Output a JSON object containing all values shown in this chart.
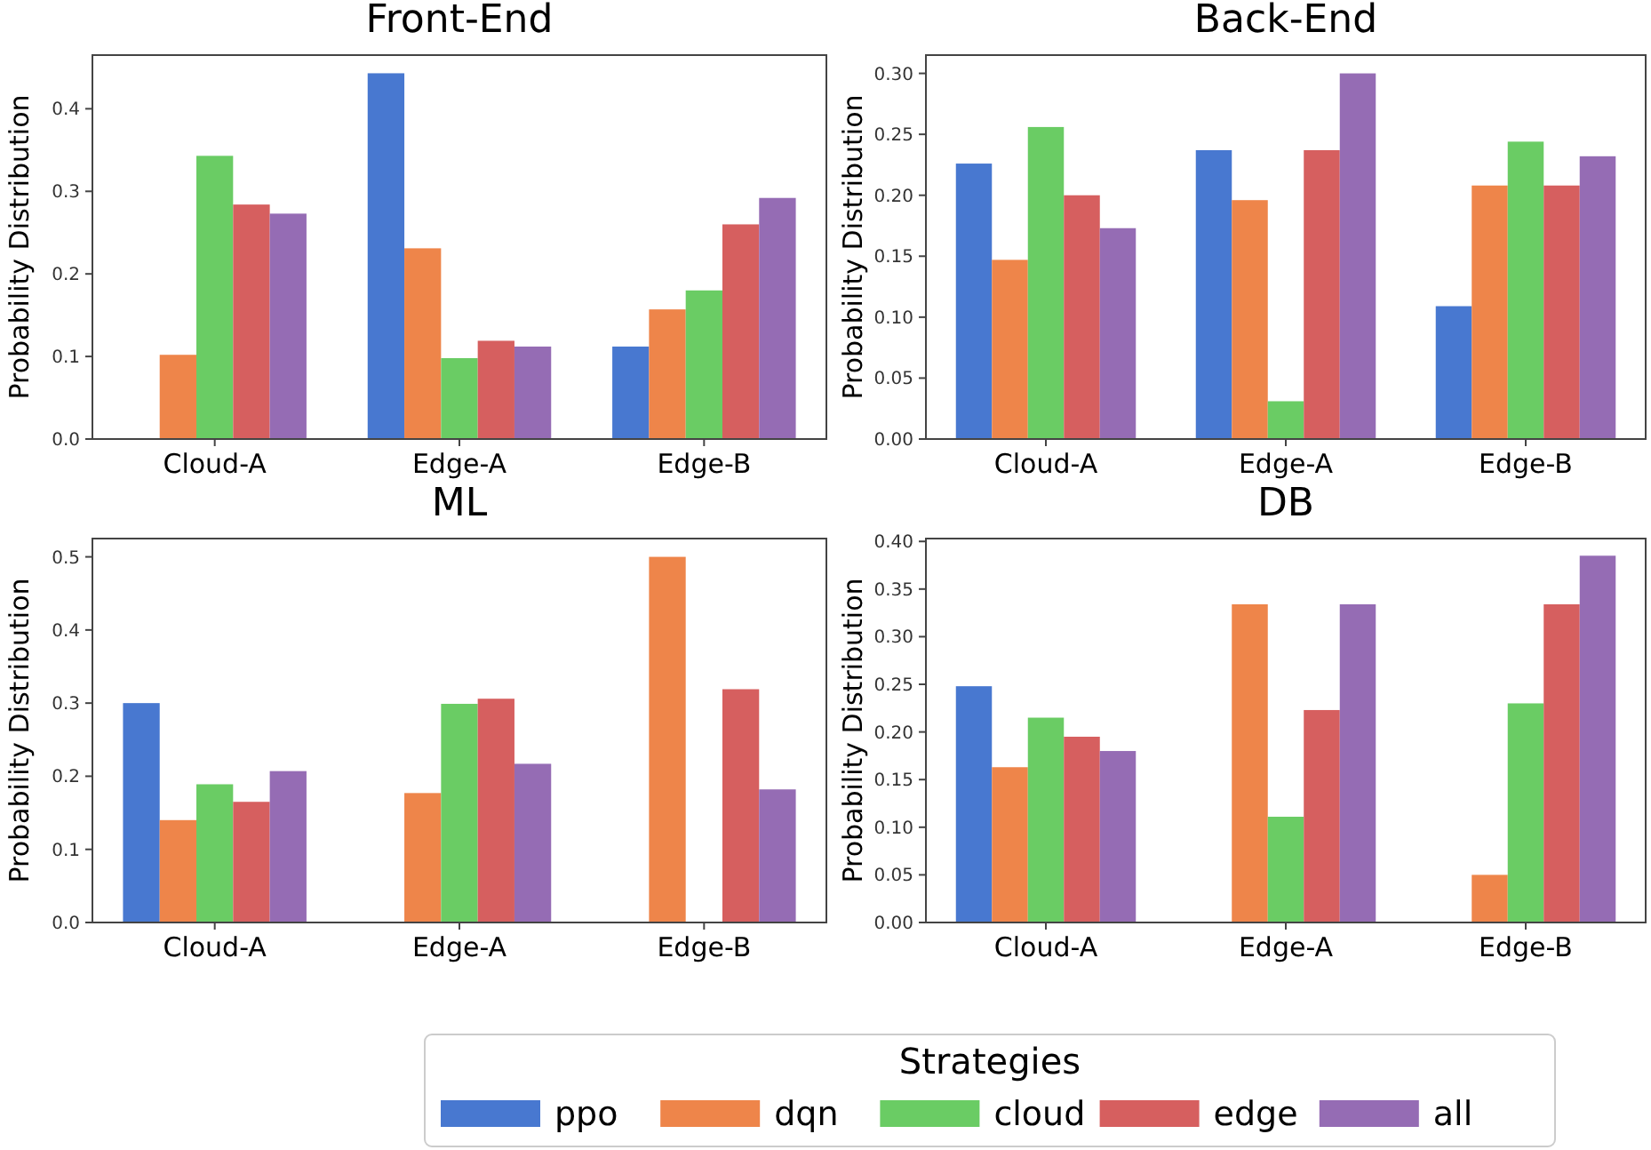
{
  "chart_data": [
    {
      "type": "bar",
      "title": "Front-End",
      "ylabel": "Probability Distribution",
      "categories": [
        "Cloud-A",
        "Edge-A",
        "Edge-B"
      ],
      "legend": "bottom",
      "legend_title": "Strategies",
      "ylim": [
        0,
        0.465
      ],
      "yticks": [
        {
          "value": 0,
          "label": "0.0"
        },
        {
          "value": 0.1,
          "label": "0.1"
        },
        {
          "value": 0.2,
          "label": "0.2"
        },
        {
          "value": 0.3,
          "label": "0.3"
        },
        {
          "value": 0.4,
          "label": "0.4"
        }
      ],
      "series": [
        {
          "name": "ppo",
          "color": "#4878d0",
          "values": [
            0,
            0.443,
            0.112
          ]
        },
        {
          "name": "dqn",
          "color": "#ee854a",
          "values": [
            0.102,
            0.231,
            0.157
          ]
        },
        {
          "name": "cloud",
          "color": "#6acc64",
          "values": [
            0.343,
            0.098,
            0.18
          ]
        },
        {
          "name": "edge",
          "color": "#d65f5f",
          "values": [
            0.284,
            0.119,
            0.26
          ]
        },
        {
          "name": "all",
          "color": "#956cb4",
          "values": [
            0.273,
            0.112,
            0.292
          ]
        }
      ]
    },
    {
      "type": "bar",
      "title": "Back-End",
      "ylabel": "Probability Distribution",
      "categories": [
        "Cloud-A",
        "Edge-A",
        "Edge-B"
      ],
      "ylim": [
        0,
        0.315
      ],
      "yticks": [
        {
          "value": 0,
          "label": "0.00"
        },
        {
          "value": 0.05,
          "label": "0.05"
        },
        {
          "value": 0.1,
          "label": "0.10"
        },
        {
          "value": 0.15,
          "label": "0.15"
        },
        {
          "value": 0.2,
          "label": "0.20"
        },
        {
          "value": 0.25,
          "label": "0.25"
        },
        {
          "value": 0.3,
          "label": "0.30"
        }
      ],
      "series": [
        {
          "color": "#4878d0",
          "values": [
            0.226,
            0.237,
            0.109
          ]
        },
        {
          "color": "#ee854a",
          "values": [
            0.147,
            0.196,
            0.208
          ]
        },
        {
          "color": "#6acc64",
          "values": [
            0.256,
            0.031,
            0.244
          ]
        },
        {
          "color": "#d65f5f",
          "values": [
            0.2,
            0.237,
            0.208
          ]
        },
        {
          "color": "#956cb4",
          "values": [
            0.173,
            0.3,
            0.232
          ]
        }
      ]
    },
    {
      "type": "bar",
      "title": "ML",
      "ylabel": "Probability Distribution",
      "categories": [
        "Cloud-A",
        "Edge-A",
        "Edge-B"
      ],
      "ylim": [
        0,
        0.525
      ],
      "yticks": [
        {
          "value": 0,
          "label": "0.0"
        },
        {
          "value": 0.1,
          "label": "0.1"
        },
        {
          "value": 0.2,
          "label": "0.2"
        },
        {
          "value": 0.3,
          "label": "0.3"
        },
        {
          "value": 0.4,
          "label": "0.4"
        },
        {
          "value": 0.5,
          "label": "0.5"
        }
      ],
      "series": [
        {
          "color": "#4878d0",
          "values": [
            0.3,
            0,
            0
          ]
        },
        {
          "color": "#ee854a",
          "values": [
            0.14,
            0.177,
            0.5
          ]
        },
        {
          "color": "#6acc64",
          "values": [
            0.189,
            0.299,
            0
          ]
        },
        {
          "color": "#d65f5f",
          "values": [
            0.165,
            0.306,
            0.319
          ]
        },
        {
          "color": "#956cb4",
          "values": [
            0.207,
            0.217,
            0.182
          ]
        }
      ]
    },
    {
      "type": "bar",
      "title": "DB",
      "ylabel": "Probability Distribution",
      "categories": [
        "Cloud-A",
        "Edge-A",
        "Edge-B"
      ],
      "ylim": [
        0,
        0.403
      ],
      "yticks": [
        {
          "value": 0,
          "label": "0.00"
        },
        {
          "value": 0.05,
          "label": "0.05"
        },
        {
          "value": 0.1,
          "label": "0.10"
        },
        {
          "value": 0.15,
          "label": "0.15"
        },
        {
          "value": 0.2,
          "label": "0.20"
        },
        {
          "value": 0.25,
          "label": "0.25"
        },
        {
          "value": 0.3,
          "label": "0.30"
        },
        {
          "value": 0.35,
          "label": "0.35"
        },
        {
          "value": 0.4,
          "label": "0.40"
        }
      ],
      "series": [
        {
          "color": "#4878d0",
          "values": [
            0.248,
            0,
            0
          ]
        },
        {
          "color": "#ee854a",
          "values": [
            0.163,
            0.334,
            0.05
          ]
        },
        {
          "color": "#6acc64",
          "values": [
            0.215,
            0.111,
            0.23
          ]
        },
        {
          "color": "#d65f5f",
          "values": [
            0.195,
            0.223,
            0.334
          ]
        },
        {
          "color": "#956cb4",
          "values": [
            0.18,
            0.334,
            0.385
          ]
        }
      ]
    }
  ]
}
